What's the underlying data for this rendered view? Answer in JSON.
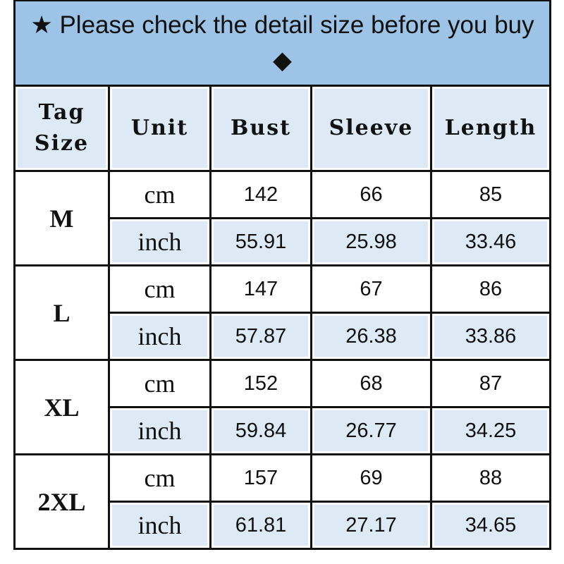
{
  "title": "★ Please check the detail size before you buy ◆",
  "headers": [
    "Tag Size",
    "Unit",
    "Bust",
    "Sleeve",
    "Length"
  ],
  "rows": [
    {
      "size": "M",
      "cm": {
        "unit": "cm",
        "bust": "142",
        "sleeve": "66",
        "length": "85"
      },
      "inch": {
        "unit": "inch",
        "bust": "55.91",
        "sleeve": "25.98",
        "length": "33.46"
      }
    },
    {
      "size": "L",
      "cm": {
        "unit": "cm",
        "bust": "147",
        "sleeve": "67",
        "length": "86"
      },
      "inch": {
        "unit": "inch",
        "bust": "57.87",
        "sleeve": "26.38",
        "length": "33.86"
      }
    },
    {
      "size": "XL",
      "cm": {
        "unit": "cm",
        "bust": "152",
        "sleeve": "68",
        "length": "87"
      },
      "inch": {
        "unit": "inch",
        "bust": "59.84",
        "sleeve": "26.77",
        "length": "34.25"
      }
    },
    {
      "size": "2XL",
      "cm": {
        "unit": "cm",
        "bust": "157",
        "sleeve": "69",
        "length": "88"
      },
      "inch": {
        "unit": "inch",
        "bust": "61.81",
        "sleeve": "27.17",
        "length": "34.65"
      }
    }
  ],
  "colors": {
    "title_bg": "#9dc3e6",
    "header_bg": "#ddeaf6",
    "alt_row_bg": "#ddeaf6"
  }
}
